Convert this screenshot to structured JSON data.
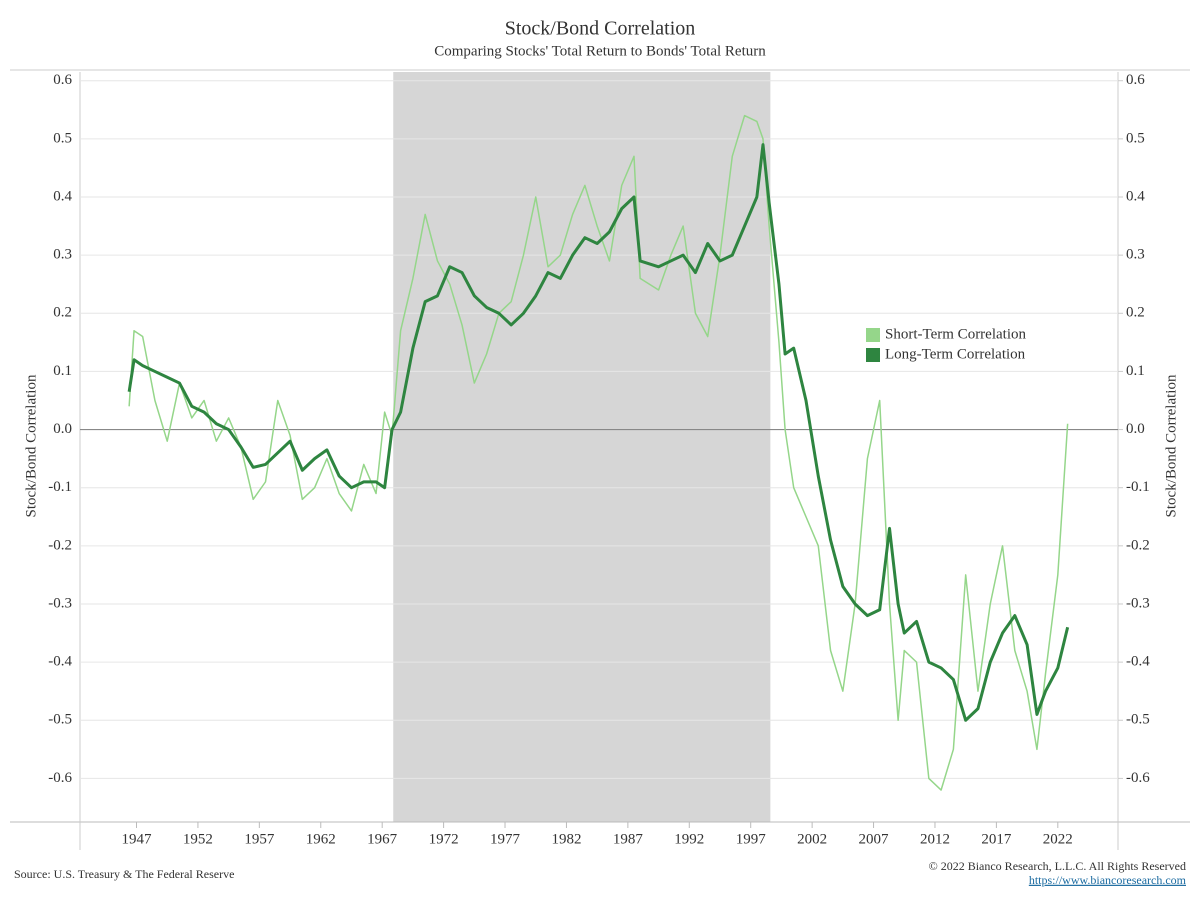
{
  "chart_data": {
    "type": "line",
    "title": "Stock/Bond Correlation",
    "subtitle": "Comparing Stocks' Total Return to Bonds' Total Return",
    "y_label": "Stock/Bond Correlation",
    "y2_label": "Stock/Bond Correlation",
    "source": "Source: U.S. Treasury & The Federal Reserve",
    "copyright": "© 2022 Bianco Research, L.L.C. All Rights Reserved",
    "link": "https://www.biancoresearch.com",
    "legend": "right",
    "grid": true,
    "shaded_range": [
      1967.9,
      1998.6
    ],
    "shade_color": "#d6d6d6",
    "xlim": [
      1942.4,
      2026.9
    ],
    "xticks": [
      1947,
      1952,
      1957,
      1962,
      1967,
      1972,
      1977,
      1982,
      1987,
      1992,
      1997,
      2002,
      2007,
      2012,
      2017,
      2022
    ],
    "ylim": [
      -0.675,
      0.615
    ],
    "yticks": [
      -0.6,
      -0.5,
      -0.4,
      -0.3,
      -0.2,
      -0.1,
      {
        "value": 0,
        "label": "0.0"
      },
      0.1,
      0.2,
      0.3,
      0.4,
      0.5,
      0.6
    ],
    "y2lim": [
      -0.675,
      0.615
    ],
    "y2ticks": [
      -0.6,
      -0.5,
      -0.4,
      -0.3,
      -0.2,
      -0.1,
      {
        "value": 0,
        "label": "0.0"
      },
      0.1,
      0.2,
      0.3,
      0.4,
      0.5,
      0.6
    ],
    "x": [
      1946.4,
      1946.8,
      1947.5,
      1948.5,
      1949.5,
      1950.5,
      1951.5,
      1952.5,
      1953.5,
      1954.5,
      1955.5,
      1956.5,
      1957.5,
      1958.5,
      1959.5,
      1960.5,
      1961.5,
      1962.5,
      1963.5,
      1964.5,
      1965.5,
      1966.5,
      1967.2,
      1967.8,
      1968.5,
      1969.5,
      1970.5,
      1971.5,
      1972.5,
      1973.5,
      1974.5,
      1975.5,
      1976.5,
      1977.5,
      1978.5,
      1979.5,
      1980.5,
      1981.5,
      1982.5,
      1983.5,
      1984.5,
      1985.5,
      1986.5,
      1987.5,
      1988.0,
      1989.5,
      1990.5,
      1991.5,
      1992.5,
      1993.5,
      1994.5,
      1995.5,
      1996.5,
      1997.5,
      1998.0,
      1998.5,
      1999.3,
      1999.8,
      2000.5,
      2001.5,
      2002.5,
      2003.5,
      2004.5,
      2005.5,
      2006.5,
      2007.5,
      2008.3,
      2009.0,
      2009.5,
      2010.5,
      2011.5,
      2012.5,
      2013.5,
      2014.5,
      2015.5,
      2016.5,
      2017.5,
      2018.5,
      2019.5,
      2020.3,
      2021.0,
      2022.0,
      2022.8
    ],
    "series": [
      {
        "name": "Short-Term Correlation",
        "color": "#95d68a",
        "width": 1.5,
        "values": [
          0.04,
          0.17,
          0.16,
          0.05,
          -0.02,
          0.08,
          0.02,
          0.05,
          -0.02,
          0.02,
          -0.03,
          -0.12,
          -0.09,
          0.05,
          -0.01,
          -0.12,
          -0.1,
          -0.05,
          -0.11,
          -0.14,
          -0.06,
          -0.11,
          0.03,
          -0.01,
          0.17,
          0.26,
          0.37,
          0.29,
          0.25,
          0.18,
          0.08,
          0.13,
          0.2,
          0.22,
          0.3,
          0.4,
          0.28,
          0.3,
          0.37,
          0.42,
          0.35,
          0.29,
          0.42,
          0.47,
          0.26,
          0.24,
          0.3,
          0.35,
          0.2,
          0.16,
          0.3,
          0.47,
          0.54,
          0.53,
          0.5,
          0.35,
          0.15,
          0.0,
          -0.1,
          -0.15,
          -0.2,
          -0.38,
          -0.45,
          -0.3,
          -0.05,
          0.05,
          -0.3,
          -0.5,
          -0.38,
          -0.4,
          -0.6,
          -0.62,
          -0.55,
          -0.25,
          -0.45,
          -0.3,
          -0.2,
          -0.38,
          -0.45,
          -0.55,
          -0.42,
          -0.25,
          0.01
        ]
      },
      {
        "name": "Long-Term Correlation",
        "color": "#2e8540",
        "width": 3,
        "values": [
          0.065,
          0.12,
          0.11,
          0.1,
          0.09,
          0.08,
          0.04,
          0.03,
          0.01,
          0.0,
          -0.03,
          -0.065,
          -0.06,
          -0.04,
          -0.02,
          -0.07,
          -0.05,
          -0.035,
          -0.08,
          -0.1,
          -0.09,
          -0.09,
          -0.1,
          0.0,
          0.03,
          0.14,
          0.22,
          0.23,
          0.28,
          0.27,
          0.23,
          0.21,
          0.2,
          0.18,
          0.2,
          0.23,
          0.27,
          0.26,
          0.3,
          0.33,
          0.32,
          0.34,
          0.38,
          0.4,
          0.29,
          0.28,
          0.29,
          0.3,
          0.27,
          0.32,
          0.29,
          0.3,
          0.35,
          0.4,
          0.49,
          0.39,
          0.25,
          0.13,
          0.14,
          0.05,
          -0.08,
          -0.19,
          -0.27,
          -0.3,
          -0.32,
          -0.31,
          -0.17,
          -0.3,
          -0.35,
          -0.33,
          -0.4,
          -0.41,
          -0.43,
          -0.5,
          -0.48,
          -0.4,
          -0.35,
          -0.32,
          -0.37,
          -0.49,
          -0.45,
          -0.41,
          -0.34
        ]
      }
    ]
  }
}
